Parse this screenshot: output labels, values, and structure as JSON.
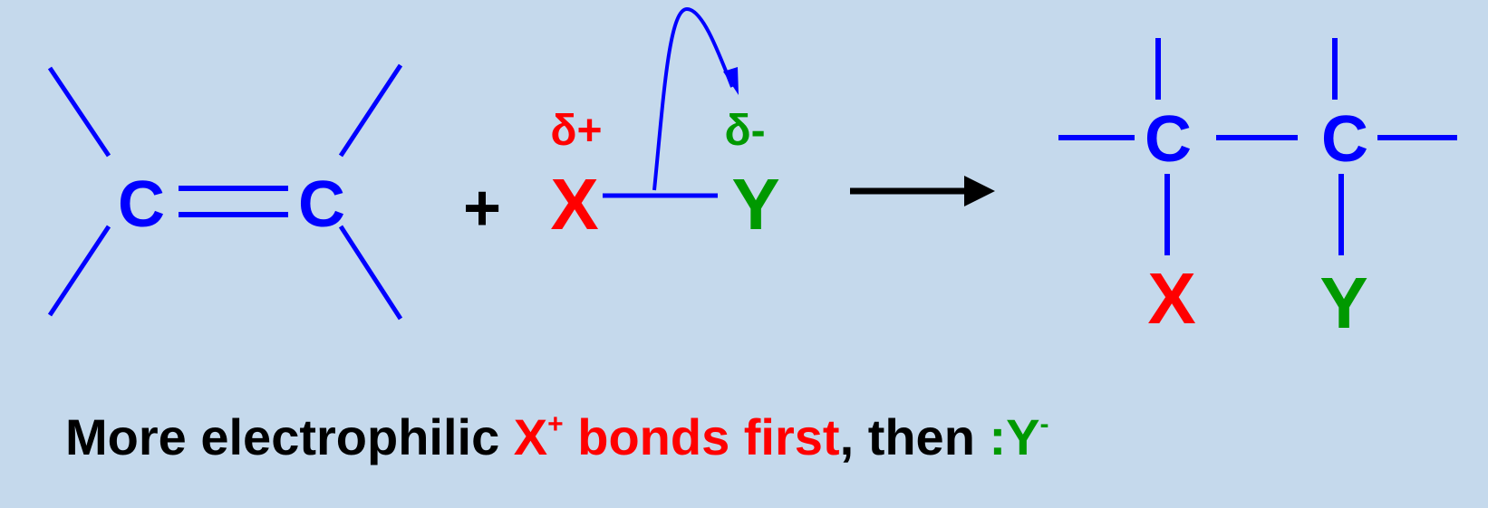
{
  "colors": {
    "background": "#c5d9ec",
    "bond": "#0000ff",
    "carbon": "#0000ff",
    "x_atom": "#ff0000",
    "y_atom": "#009900",
    "text": "#000000"
  },
  "reactant_alkene": {
    "carbon_left": "C",
    "carbon_right": "C",
    "bond_type": "double"
  },
  "plus_sign": "+",
  "reagent": {
    "x_label": "X",
    "y_label": "Y",
    "x_charge": "δ+",
    "y_charge": "δ-",
    "arrow_icon": "curved-arrow-icon"
  },
  "reaction_arrow_icon": "right-arrow-icon",
  "product": {
    "carbon_left": "C",
    "carbon_right": "C",
    "x_label": "X",
    "y_label": "Y"
  },
  "caption": {
    "part1": "More electrophilic ",
    "x_text": "X",
    "x_sup": "+",
    "bonds_first": " bonds first",
    "then": ", then ",
    "y_text": ":Y",
    "y_sup": "-"
  }
}
